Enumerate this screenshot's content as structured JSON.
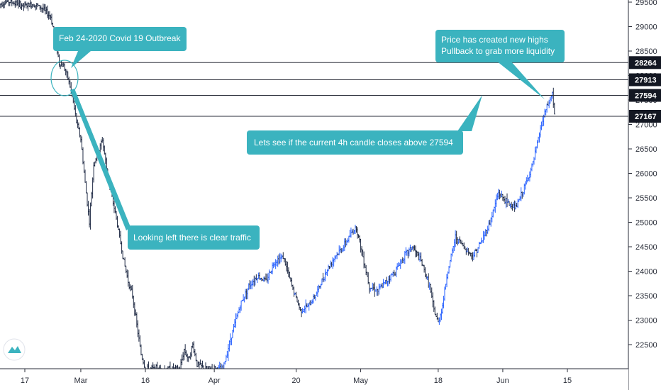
{
  "colors": {
    "bar": "#1f2a44",
    "bar_up": "#2962ff",
    "level_line": "#2a2e39",
    "callout": "#3bb3bf",
    "callout_text": "#ffffff",
    "axis": "#2a2e39",
    "scale_bg": "#ffffff",
    "logo": "#3bb3bf"
  },
  "icons": {
    "logo": "tradingview-logo-icon"
  },
  "chart_data": {
    "type": "ohlc-bar",
    "y_axis": {
      "ticks": [
        22500,
        23000,
        23500,
        24000,
        24500,
        25000,
        25500,
        26000,
        26500,
        27000,
        27500,
        28000,
        28500,
        29000,
        29500
      ],
      "tick_labels": [
        "22500",
        "23000",
        "23500",
        "24000",
        "24500",
        "25000",
        "25500",
        "26000",
        "26500",
        "27000",
        "27500",
        "28000",
        "28500",
        "29000",
        "29500"
      ],
      "range": [
        22000,
        29600
      ]
    },
    "x_axis": {
      "labels": [
        "17",
        "Mar",
        "16",
        "Apr",
        "20",
        "May",
        "18",
        "Jun",
        "15"
      ],
      "label_days": [
        0,
        13,
        28,
        44,
        63,
        78,
        96,
        111,
        126
      ],
      "range_days": [
        -6,
        147
      ]
    },
    "levels": [
      {
        "value": 28264,
        "label": "28264"
      },
      {
        "value": 27913,
        "label": "27913"
      },
      {
        "value": 27594,
        "label": "27594"
      },
      {
        "value": 27167,
        "label": "27167"
      }
    ],
    "price_path": [
      [
        -6,
        29450
      ],
      [
        -4,
        29520
      ],
      [
        -2,
        29470
      ],
      [
        0,
        29420
      ],
      [
        2,
        29460
      ],
      [
        4,
        29380
      ],
      [
        6,
        29200
      ],
      [
        7,
        28800
      ],
      [
        8,
        28250
      ],
      [
        9,
        28200
      ],
      [
        10,
        27950
      ],
      [
        11,
        27600
      ],
      [
        12,
        27050
      ],
      [
        13,
        26700
      ],
      [
        14,
        25800
      ],
      [
        15,
        25000
      ],
      [
        16,
        26200
      ],
      [
        17,
        26400
      ],
      [
        18,
        26700
      ],
      [
        19,
        26100
      ],
      [
        20,
        25600
      ],
      [
        21,
        25200
      ],
      [
        22,
        24700
      ],
      [
        23,
        24200
      ],
      [
        24,
        23800
      ],
      [
        25,
        23500
      ],
      [
        26,
        22900
      ],
      [
        27,
        22300
      ],
      [
        28,
        22000
      ],
      [
        36,
        22000
      ],
      [
        37,
        22400
      ],
      [
        38,
        22200
      ],
      [
        39,
        22500
      ],
      [
        40,
        22100
      ],
      [
        42,
        22000
      ],
      [
        46,
        22000
      ],
      [
        48,
        22700
      ],
      [
        50,
        23300
      ],
      [
        52,
        23700
      ],
      [
        54,
        23900
      ],
      [
        56,
        23800
      ],
      [
        58,
        24200
      ],
      [
        60,
        24300
      ],
      [
        62,
        23700
      ],
      [
        64,
        23200
      ],
      [
        66,
        23300
      ],
      [
        68,
        23600
      ],
      [
        70,
        24000
      ],
      [
        72,
        24300
      ],
      [
        74,
        24500
      ],
      [
        76,
        24800
      ],
      [
        77,
        24900
      ],
      [
        78,
        24500
      ],
      [
        80,
        23700
      ],
      [
        82,
        23600
      ],
      [
        84,
        23800
      ],
      [
        86,
        24000
      ],
      [
        88,
        24300
      ],
      [
        90,
        24500
      ],
      [
        92,
        24200
      ],
      [
        94,
        23700
      ],
      [
        95,
        23200
      ],
      [
        96,
        22950
      ],
      [
        97,
        23300
      ],
      [
        98,
        23900
      ],
      [
        100,
        24700
      ],
      [
        102,
        24500
      ],
      [
        104,
        24300
      ],
      [
        106,
        24600
      ],
      [
        108,
        25000
      ],
      [
        110,
        25600
      ],
      [
        112,
        25400
      ],
      [
        114,
        25300
      ],
      [
        116,
        25700
      ],
      [
        118,
        26200
      ],
      [
        119,
        26600
      ],
      [
        120,
        27000
      ],
      [
        121,
        27300
      ],
      [
        122,
        27500
      ],
      [
        122.5,
        27650
      ],
      [
        123,
        27200
      ]
    ],
    "annotations": [
      {
        "text": "Feb 24-2020 Covid 19 Outbreak"
      },
      {
        "text": "Price has created new highs"
      },
      {
        "text": "Pullback to grab more liquidity"
      },
      {
        "text": "Lets see if the current 4h candle closes above 27594"
      },
      {
        "text": "Looking left there is clear traffic"
      }
    ]
  }
}
